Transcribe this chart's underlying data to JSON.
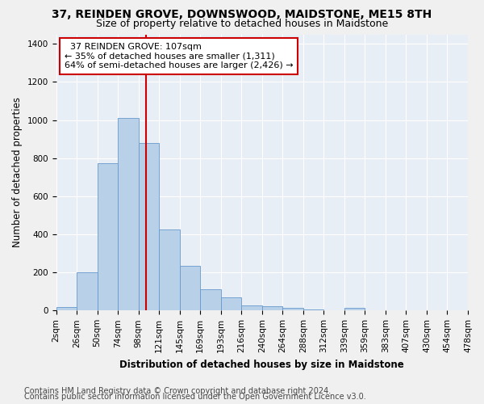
{
  "title": "37, REINDEN GROVE, DOWNSWOOD, MAIDSTONE, ME15 8TH",
  "subtitle": "Size of property relative to detached houses in Maidstone",
  "xlabel": "Distribution of detached houses by size in Maidstone",
  "ylabel": "Number of detached properties",
  "bin_labels": [
    "2sqm",
    "26sqm",
    "50sqm",
    "74sqm",
    "98sqm",
    "121sqm",
    "145sqm",
    "169sqm",
    "193sqm",
    "216sqm",
    "240sqm",
    "264sqm",
    "288sqm",
    "312sqm",
    "339sqm",
    "359sqm",
    "383sqm",
    "407sqm",
    "430sqm",
    "454sqm",
    "478sqm"
  ],
  "bar_values": [
    20,
    200,
    775,
    1010,
    880,
    425,
    235,
    110,
    68,
    25,
    22,
    15,
    7,
    0,
    12,
    0,
    0,
    0,
    0,
    0
  ],
  "bar_color": "#b8d0e8",
  "bar_edge_color": "#6699cc",
  "red_line_x": 4.35,
  "annotation_text": "  37 REINDEN GROVE: 107sqm  \n← 35% of detached houses are smaller (1,311)\n64% of semi-detached houses are larger (2,426) →",
  "annotation_box_color": "#ffffff",
  "annotation_box_edge": "#cc0000",
  "ylim": [
    0,
    1450
  ],
  "yticks": [
    0,
    200,
    400,
    600,
    800,
    1000,
    1200,
    1400
  ],
  "footer_line1": "Contains HM Land Registry data © Crown copyright and database right 2024.",
  "footer_line2": "Contains public sector information licensed under the Open Government Licence v3.0.",
  "bg_color": "#e8eef6",
  "grid_color": "#ffffff",
  "title_fontsize": 10,
  "subtitle_fontsize": 9,
  "axis_label_fontsize": 8.5,
  "tick_fontsize": 7.5,
  "annotation_fontsize": 8,
  "footer_fontsize": 7
}
